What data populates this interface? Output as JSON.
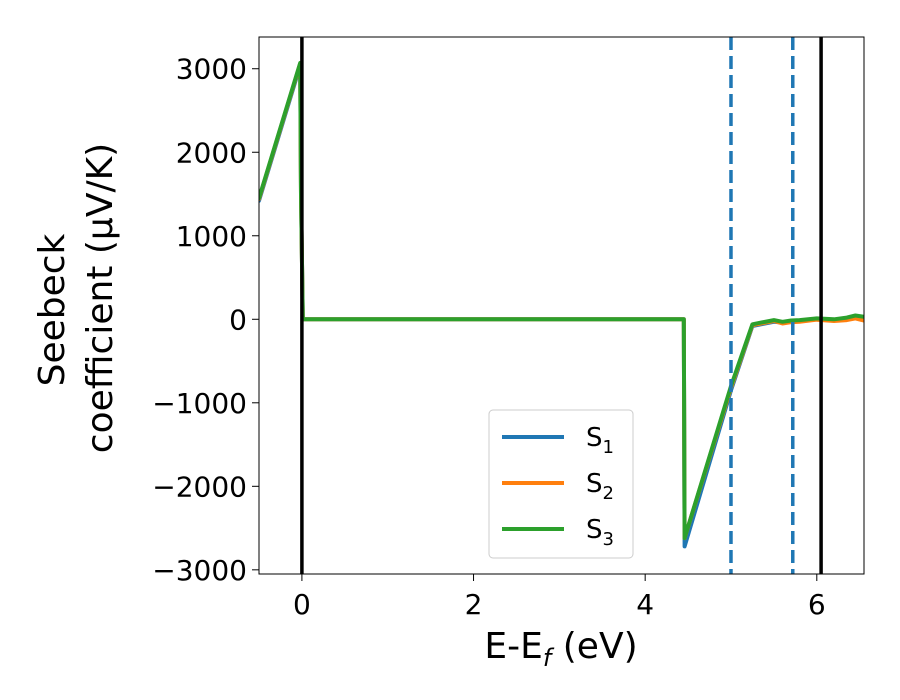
{
  "chart_data": {
    "type": "line",
    "xlabel": {
      "main": "E-E",
      "sub": "f",
      "tail": " (eV)"
    },
    "ylabel": {
      "line1": "Seebeck",
      "line2": "coefficient  (μV/K)"
    },
    "xlim": [
      -0.5,
      6.55
    ],
    "ylim": [
      -3050,
      3380
    ],
    "xticks": [
      0,
      2,
      4,
      6
    ],
    "xtick_labels": [
      "0",
      "2",
      "4",
      "6"
    ],
    "yticks": [
      3000,
      2000,
      1000,
      0,
      -1000,
      -2000,
      -3000
    ],
    "ytick_labels": [
      "3000",
      "2000",
      "1000",
      "0",
      "−1000",
      "−2000",
      "−3000"
    ],
    "grid": false,
    "legend_position": "lower-center",
    "vlines": [
      {
        "x": 0.0,
        "style": "solid",
        "color": "#000000"
      },
      {
        "x": 6.05,
        "style": "solid",
        "color": "#000000"
      },
      {
        "x": 5.0,
        "style": "dashed",
        "color": "#1f77b4"
      },
      {
        "x": 5.72,
        "style": "dashed",
        "color": "#1f77b4"
      }
    ],
    "series": [
      {
        "name": "S",
        "subscript": "1",
        "color": "#1f77b4",
        "x": [
          -0.5,
          -0.02,
          -0.01,
          0.01,
          4.44,
          4.45,
          4.46,
          5.0,
          5.25,
          5.35,
          5.5,
          5.6,
          5.7,
          5.8,
          6.0,
          6.2,
          6.35,
          6.45,
          6.55
        ],
        "y": [
          1420,
          3040,
          1500,
          0,
          0,
          0,
          -2720,
          -850,
          -80,
          -60,
          -30,
          -40,
          -25,
          -20,
          0,
          -10,
          5,
          20,
          10
        ]
      },
      {
        "name": "S",
        "subscript": "2",
        "color": "#ff7f0e",
        "x": [
          -0.5,
          -0.02,
          -0.01,
          0.01,
          4.44,
          4.45,
          4.46,
          5.0,
          5.25,
          5.35,
          5.5,
          5.6,
          5.7,
          5.8,
          6.0,
          6.2,
          6.35,
          6.45,
          6.55
        ],
        "y": [
          1440,
          3060,
          1500,
          0,
          0,
          0,
          -2620,
          -820,
          -70,
          -50,
          -20,
          -50,
          -35,
          -30,
          -5,
          -20,
          -10,
          10,
          -15
        ]
      },
      {
        "name": "S",
        "subscript": "3",
        "color": "#2ca02c",
        "x": [
          -0.5,
          -0.02,
          -0.01,
          0.01,
          4.44,
          4.45,
          4.46,
          5.0,
          5.25,
          5.35,
          5.5,
          5.6,
          5.7,
          5.8,
          6.0,
          6.2,
          6.35,
          6.45,
          6.55
        ],
        "y": [
          1450,
          3070,
          1500,
          0,
          0,
          0,
          -2620,
          -800,
          -60,
          -40,
          -10,
          -30,
          -15,
          -10,
          10,
          0,
          20,
          45,
          30
        ]
      }
    ]
  }
}
